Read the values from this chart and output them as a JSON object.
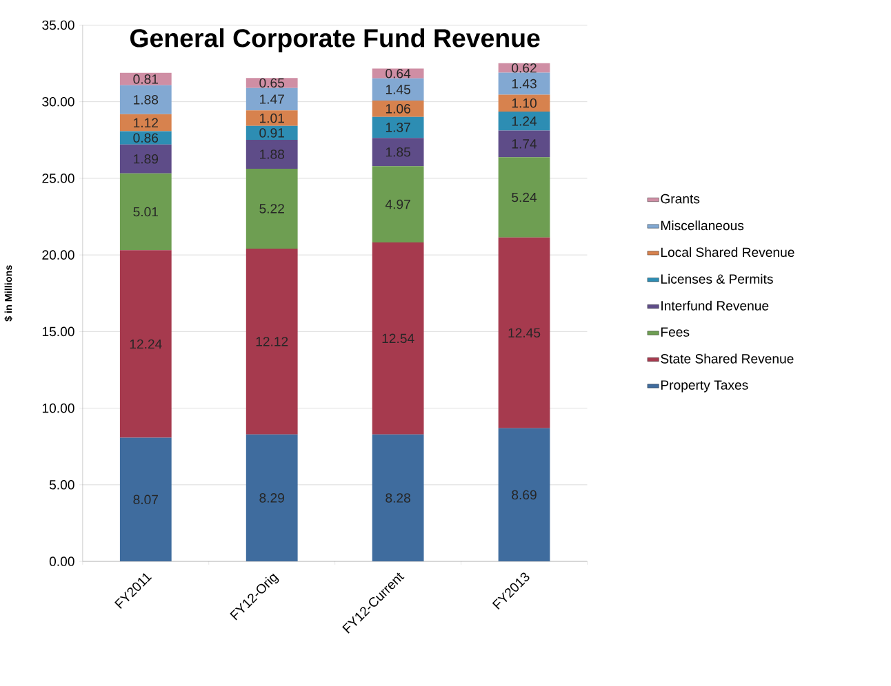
{
  "chart_data": {
    "type": "bar",
    "title": "General Corporate Fund Revenue",
    "ylabel": "$ in Millions",
    "categories": [
      "FY2011",
      "FY12-Orig",
      "FY12-Current",
      "FY2013"
    ],
    "stacked": true,
    "grid": "y",
    "legend": "right",
    "ylim": [
      0,
      35
    ],
    "yticks": [
      {
        "value": 0,
        "label": "0.00"
      },
      {
        "value": 5,
        "label": "5.00"
      },
      {
        "value": 10,
        "label": "10.00"
      },
      {
        "value": 15,
        "label": "15.00"
      },
      {
        "value": 20,
        "label": "20.00"
      },
      {
        "value": 25,
        "label": "25.00"
      },
      {
        "value": 30,
        "label": "30.00"
      },
      {
        "value": 35,
        "label": "35.00"
      }
    ],
    "series": [
      {
        "name": "Property Taxes",
        "color": "#3f6c9e",
        "values": [
          8.07,
          8.29,
          8.28,
          8.69
        ],
        "value_labels": [
          "8.07",
          "8.29",
          "8.28",
          "8.69"
        ]
      },
      {
        "name": "State Shared Revenue",
        "color": "#a63a4e",
        "values": [
          12.24,
          12.12,
          12.54,
          12.45
        ],
        "value_labels": [
          "12.24",
          "12.12",
          "12.54",
          "12.45"
        ]
      },
      {
        "name": "Fees",
        "color": "#6e9e52",
        "values": [
          5.01,
          5.22,
          4.97,
          5.24
        ],
        "value_labels": [
          "5.01",
          "5.22",
          "4.97",
          "5.24"
        ]
      },
      {
        "name": "Interfund Revenue",
        "color": "#5e4c88",
        "values": [
          1.89,
          1.88,
          1.85,
          1.74
        ],
        "value_labels": [
          "1.89",
          "1.88",
          "1.85",
          "1.74"
        ]
      },
      {
        "name": "Licenses & Permits",
        "color": "#2d8db3",
        "values": [
          0.86,
          0.91,
          1.37,
          1.24
        ],
        "value_labels": [
          "0.86",
          "0.91",
          "1.37",
          "1.24"
        ]
      },
      {
        "name": "Local Shared Revenue",
        "color": "#d7824e",
        "values": [
          1.12,
          1.01,
          1.06,
          1.1
        ],
        "value_labels": [
          "1.12",
          "1.01",
          "1.06",
          "1.10"
        ]
      },
      {
        "name": "Miscellaneous",
        "color": "#82a8d2",
        "values": [
          1.88,
          1.47,
          1.45,
          1.43
        ],
        "value_labels": [
          "1.88",
          "1.47",
          "1.45",
          "1.43"
        ]
      },
      {
        "name": "Grants",
        "color": "#cf8ea4",
        "values": [
          0.81,
          0.65,
          0.64,
          0.62
        ],
        "value_labels": [
          "0.81",
          "0.65",
          "0.64",
          "0.62"
        ]
      }
    ]
  }
}
